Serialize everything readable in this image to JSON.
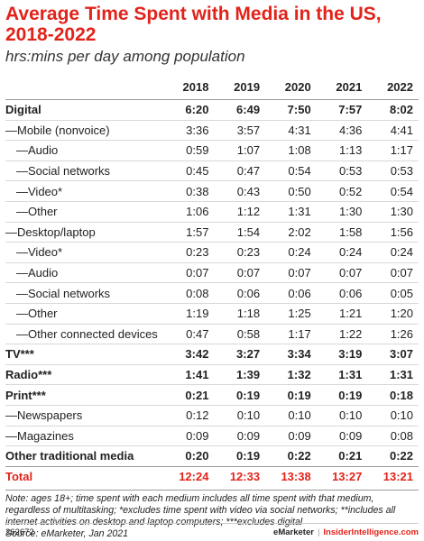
{
  "chart_data": {
    "type": "table",
    "title": "Average Time Spent with Media in the US, 2018-2022",
    "subtitle": "hrs:mins per day among population",
    "columns": [
      "2018",
      "2019",
      "2020",
      "2021",
      "2022"
    ],
    "rows": [
      {
        "label": "Digital",
        "bold": true,
        "values": [
          "6:20",
          "6:49",
          "7:50",
          "7:57",
          "8:02"
        ]
      },
      {
        "label": "—Mobile (nonvoice)",
        "bold": false,
        "values": [
          "3:36",
          "3:57",
          "4:31",
          "4:36",
          "4:41"
        ]
      },
      {
        "label": "—Audio",
        "bold": false,
        "indent": 2,
        "values": [
          "0:59",
          "1:07",
          "1:08",
          "1:13",
          "1:17"
        ]
      },
      {
        "label": "—Social networks",
        "bold": false,
        "indent": 2,
        "values": [
          "0:45",
          "0:47",
          "0:54",
          "0:53",
          "0:53"
        ]
      },
      {
        "label": "—Video*",
        "bold": false,
        "indent": 2,
        "values": [
          "0:38",
          "0:43",
          "0:50",
          "0:52",
          "0:54"
        ]
      },
      {
        "label": "—Other",
        "bold": false,
        "indent": 2,
        "values": [
          "1:06",
          "1:12",
          "1:31",
          "1:30",
          "1:30"
        ]
      },
      {
        "label": "—Desktop/laptop",
        "bold": false,
        "values": [
          "1:57",
          "1:54",
          "2:02",
          "1:58",
          "1:56"
        ]
      },
      {
        "label": "—Video*",
        "bold": false,
        "indent": 2,
        "values": [
          "0:23",
          "0:23",
          "0:24",
          "0:24",
          "0:24"
        ]
      },
      {
        "label": "—Audio",
        "bold": false,
        "indent": 2,
        "values": [
          "0:07",
          "0:07",
          "0:07",
          "0:07",
          "0:07"
        ]
      },
      {
        "label": "—Social networks",
        "bold": false,
        "indent": 2,
        "values": [
          "0:08",
          "0:06",
          "0:06",
          "0:06",
          "0:05"
        ]
      },
      {
        "label": "—Other",
        "bold": false,
        "indent": 2,
        "values": [
          "1:19",
          "1:18",
          "1:25",
          "1:21",
          "1:20"
        ]
      },
      {
        "label": "—Other connected devices",
        "bold": false,
        "indent": 2,
        "values": [
          "0:47",
          "0:58",
          "1:17",
          "1:22",
          "1:26"
        ]
      },
      {
        "label": "TV***",
        "bold": true,
        "values": [
          "3:42",
          "3:27",
          "3:34",
          "3:19",
          "3:07"
        ]
      },
      {
        "label": "Radio***",
        "bold": true,
        "values": [
          "1:41",
          "1:39",
          "1:32",
          "1:31",
          "1:31"
        ]
      },
      {
        "label": "Print***",
        "bold": true,
        "values": [
          "0:21",
          "0:19",
          "0:19",
          "0:19",
          "0:18"
        ]
      },
      {
        "label": "—Newspapers",
        "bold": false,
        "values": [
          "0:12",
          "0:10",
          "0:10",
          "0:10",
          "0:10"
        ]
      },
      {
        "label": "—Magazines",
        "bold": false,
        "values": [
          "0:09",
          "0:09",
          "0:09",
          "0:09",
          "0:08"
        ]
      },
      {
        "label": "Other traditional media",
        "bold": true,
        "values": [
          "0:20",
          "0:19",
          "0:22",
          "0:21",
          "0:22"
        ]
      },
      {
        "label": "Total",
        "total": true,
        "values": [
          "12:24",
          "12:33",
          "13:38",
          "13:27",
          "13:21"
        ]
      }
    ],
    "note": "Note: ages 18+; time spent with each medium includes all time spent with that medium, regardless of multitasking; *excludes time spent with video via social networks; **includes all internet activities on desktop and laptop computers; ***excludes digital",
    "source": "Source: eMarketer, Jan 2021"
  },
  "footer": {
    "id": "262672",
    "brand": "eMarketer",
    "separator": "|",
    "site": "InsiderIntelligence.com"
  },
  "colors": {
    "accent": "#e2231a",
    "text": "#222222"
  }
}
